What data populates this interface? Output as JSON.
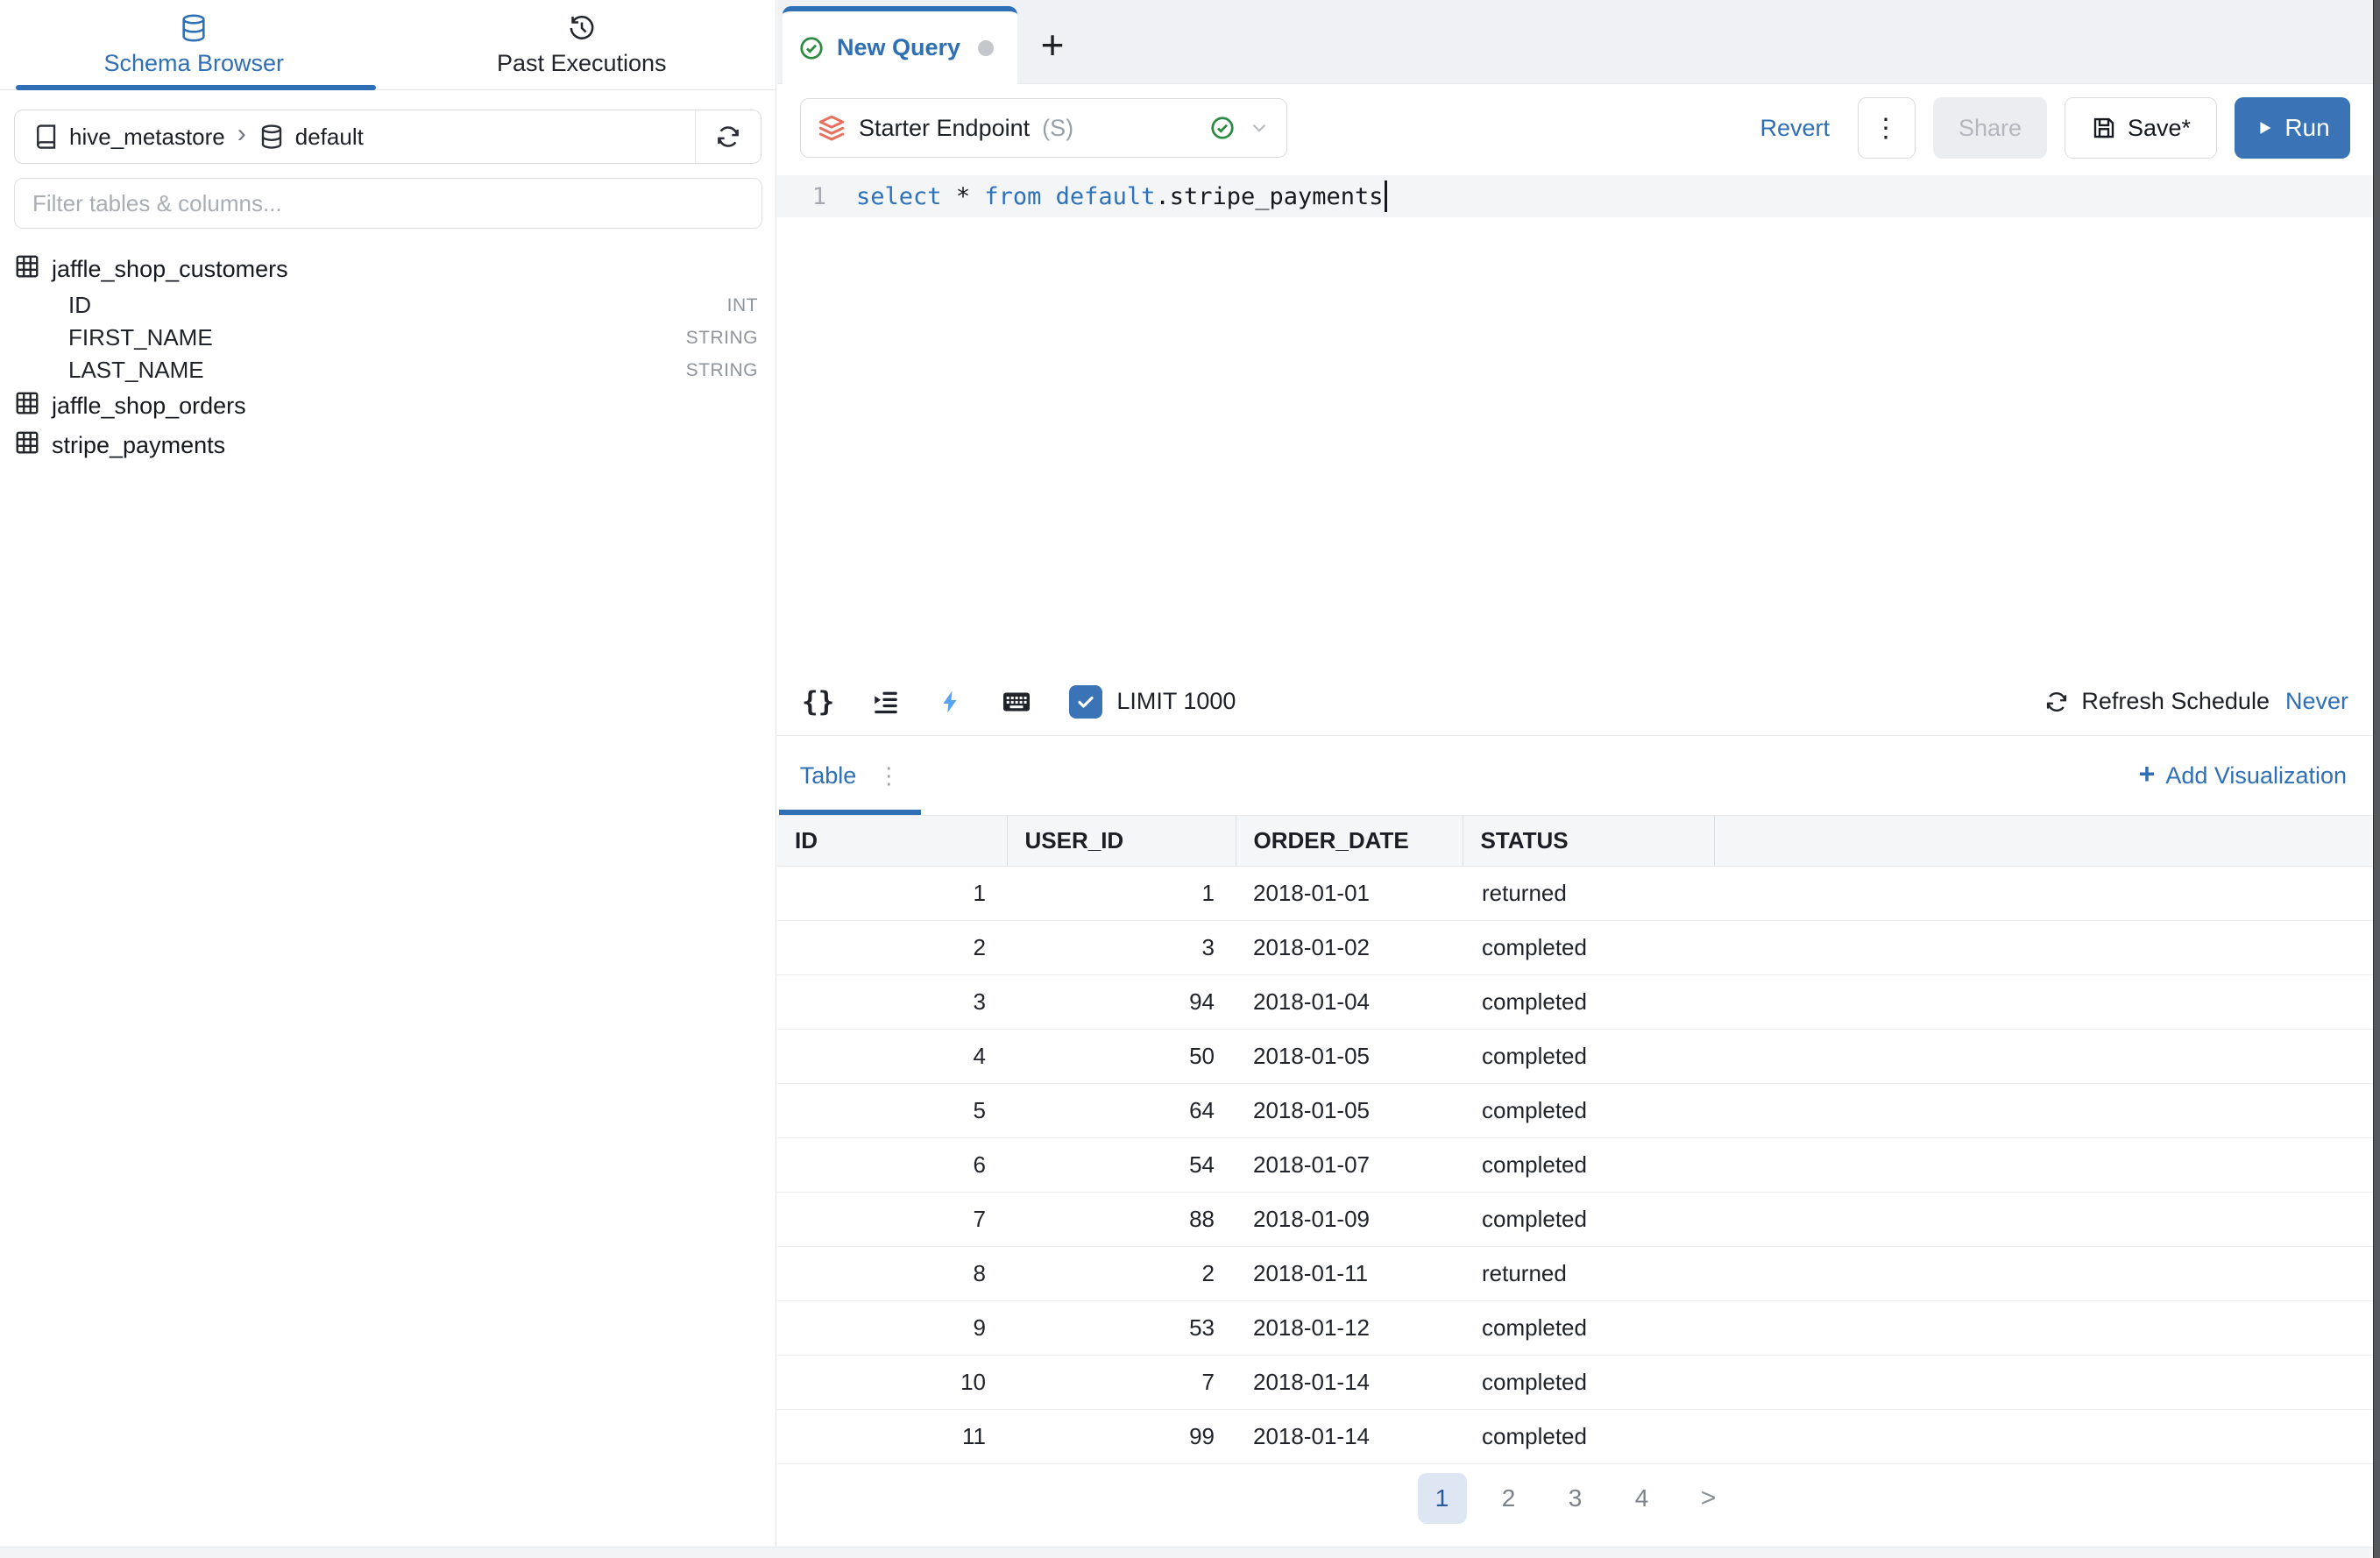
{
  "colors": {
    "accent_blue": "#2e6fb5",
    "run_button_bg": "#3a74b6",
    "keyword_blue": "#2d72ba",
    "green_check": "#2c8a43",
    "endpoint_icon_coral": "#e8705f",
    "lightning_blue": "#57a4f1",
    "pagination_active_bg": "#dde6f2"
  },
  "sidebar": {
    "tabs": [
      {
        "label": "Schema Browser",
        "icon": "database-icon",
        "active": true
      },
      {
        "label": "Past Executions",
        "icon": "history-clock-icon",
        "active": false
      }
    ],
    "breadcrumb": {
      "catalog": "hive_metastore",
      "separator": "›",
      "schema": "default"
    },
    "filter_placeholder": "Filter tables & columns...",
    "schema_tree": [
      {
        "table": "jaffle_shop_customers",
        "columns": [
          {
            "name": "ID",
            "type": "INT"
          },
          {
            "name": "FIRST_NAME",
            "type": "STRING"
          },
          {
            "name": "LAST_NAME",
            "type": "STRING"
          }
        ]
      },
      {
        "table": "jaffle_shop_orders",
        "columns": []
      },
      {
        "table": "stripe_payments",
        "columns": []
      }
    ]
  },
  "query_panel": {
    "tabs": [
      {
        "label": "New Query",
        "active": true,
        "unsaved": true
      }
    ],
    "new_tab_button": "+",
    "endpoint": {
      "name": "Starter Endpoint",
      "mode": "(S)"
    },
    "actions": {
      "revert": "Revert",
      "more": "⋮",
      "share": "Share",
      "save": "Save*",
      "run": "Run"
    },
    "editor": {
      "line_number": "1",
      "sql_tokens": [
        {
          "text": "select",
          "type": "keyword"
        },
        {
          "text": " ",
          "type": "plain"
        },
        {
          "text": "*",
          "type": "plain"
        },
        {
          "text": " ",
          "type": "plain"
        },
        {
          "text": "from",
          "type": "keyword"
        },
        {
          "text": " ",
          "type": "plain"
        },
        {
          "text": "default",
          "type": "keyword"
        },
        {
          "text": ".stripe_payments",
          "type": "plain"
        }
      ]
    },
    "footer": {
      "format_icon": "{}",
      "limit_checked": true,
      "limit_label": "LIMIT 1000",
      "refresh_label": "Refresh Schedule",
      "refresh_value": "Never"
    }
  },
  "results": {
    "view_tab": "Table",
    "view_menu_icon": "⋮",
    "add_visualization_plus": "+",
    "add_visualization_label": "Add Visualization",
    "table": {
      "headers": [
        "ID",
        "USER_ID",
        "ORDER_DATE",
        "STATUS"
      ],
      "rows": [
        [
          "1",
          "1",
          "2018-01-01",
          "returned"
        ],
        [
          "2",
          "3",
          "2018-01-02",
          "completed"
        ],
        [
          "3",
          "94",
          "2018-01-04",
          "completed"
        ],
        [
          "4",
          "50",
          "2018-01-05",
          "completed"
        ],
        [
          "5",
          "64",
          "2018-01-05",
          "completed"
        ],
        [
          "6",
          "54",
          "2018-01-07",
          "completed"
        ],
        [
          "7",
          "88",
          "2018-01-09",
          "completed"
        ],
        [
          "8",
          "2",
          "2018-01-11",
          "returned"
        ],
        [
          "9",
          "53",
          "2018-01-12",
          "completed"
        ],
        [
          "10",
          "7",
          "2018-01-14",
          "completed"
        ],
        [
          "11",
          "99",
          "2018-01-14",
          "completed"
        ]
      ]
    },
    "pagination": {
      "pages": [
        "1",
        "2",
        "3",
        "4"
      ],
      "active_page": "1",
      "next": ">"
    }
  }
}
